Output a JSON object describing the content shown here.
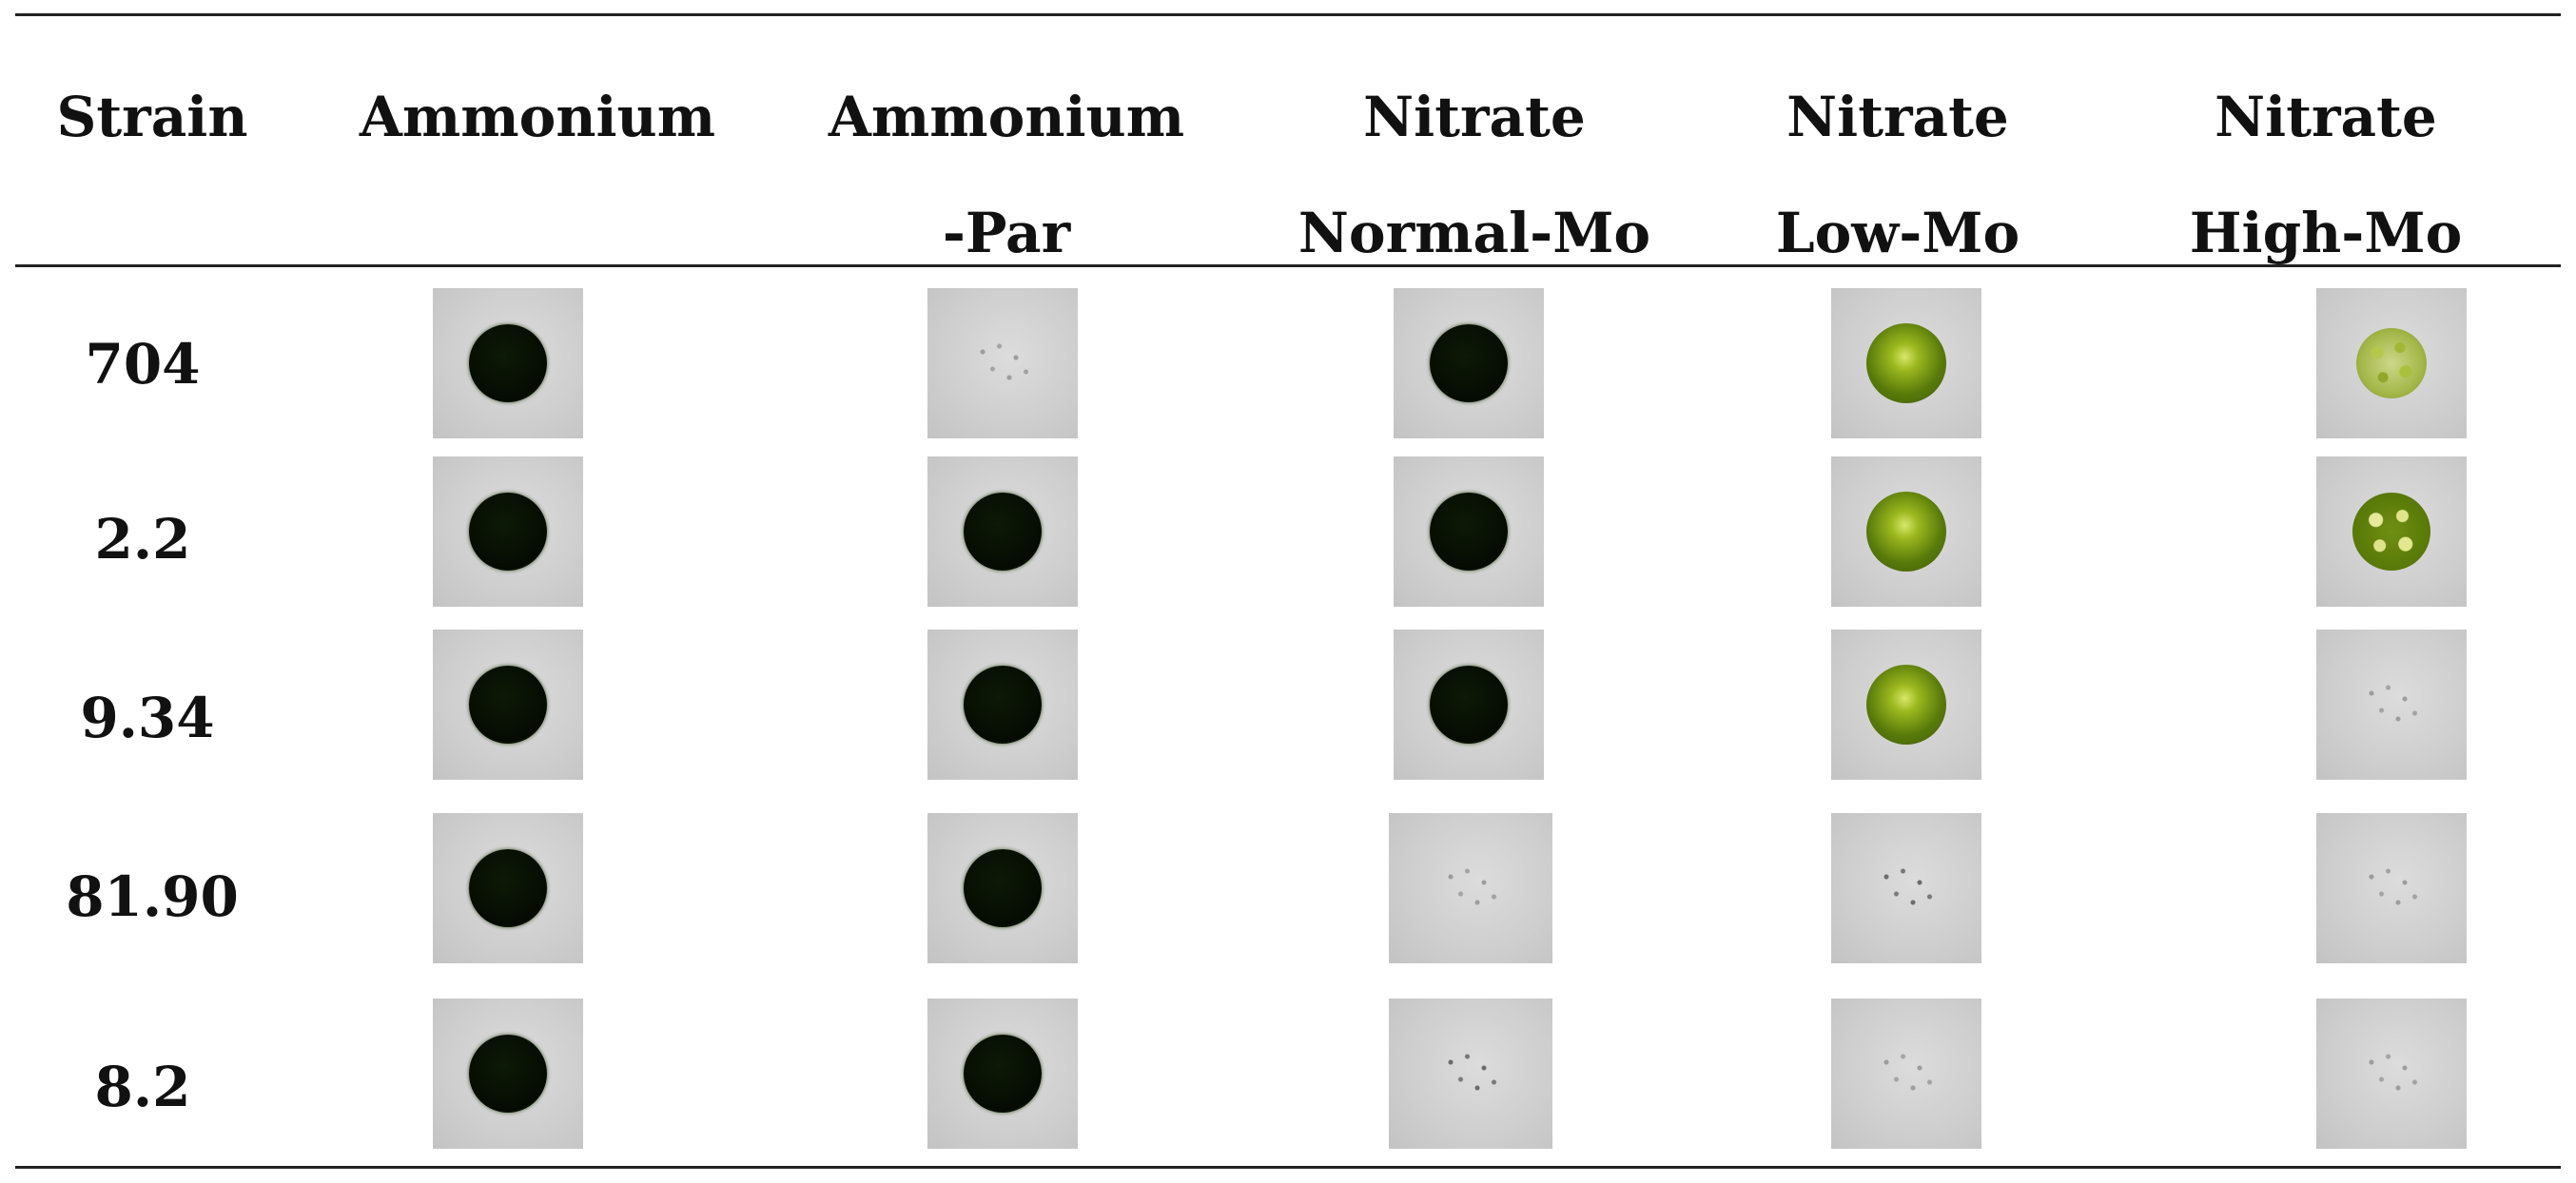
{
  "table": {
    "headers": [
      {
        "line1": "Strain",
        "line2": ""
      },
      {
        "line1": "Ammonium",
        "line2": ""
      },
      {
        "line1": "Ammonium",
        "line2": "-Par"
      },
      {
        "line1": "Nitrate",
        "line2": "Normal-Mo"
      },
      {
        "line1": "Nitrate",
        "line2": "Low-Mo"
      },
      {
        "line1": "Nitrate",
        "line2": "High-Mo"
      }
    ],
    "rows": [
      {
        "strain": "704",
        "growth": [
          "dark",
          "sparse",
          "dark",
          "green",
          "speckled"
        ]
      },
      {
        "strain": "2.2",
        "growth": [
          "dark",
          "dark",
          "dark",
          "green",
          "speckled-dense"
        ]
      },
      {
        "strain": "9.34",
        "growth": [
          "dark",
          "dark",
          "dark",
          "green",
          "sparse"
        ]
      },
      {
        "strain": "81.90",
        "growth": [
          "dark",
          "dark",
          "sparse",
          "sparse",
          "sparse"
        ]
      },
      {
        "strain": "8.2",
        "growth": [
          "dark",
          "dark",
          "sparse",
          "sparse",
          "sparse"
        ]
      }
    ]
  }
}
